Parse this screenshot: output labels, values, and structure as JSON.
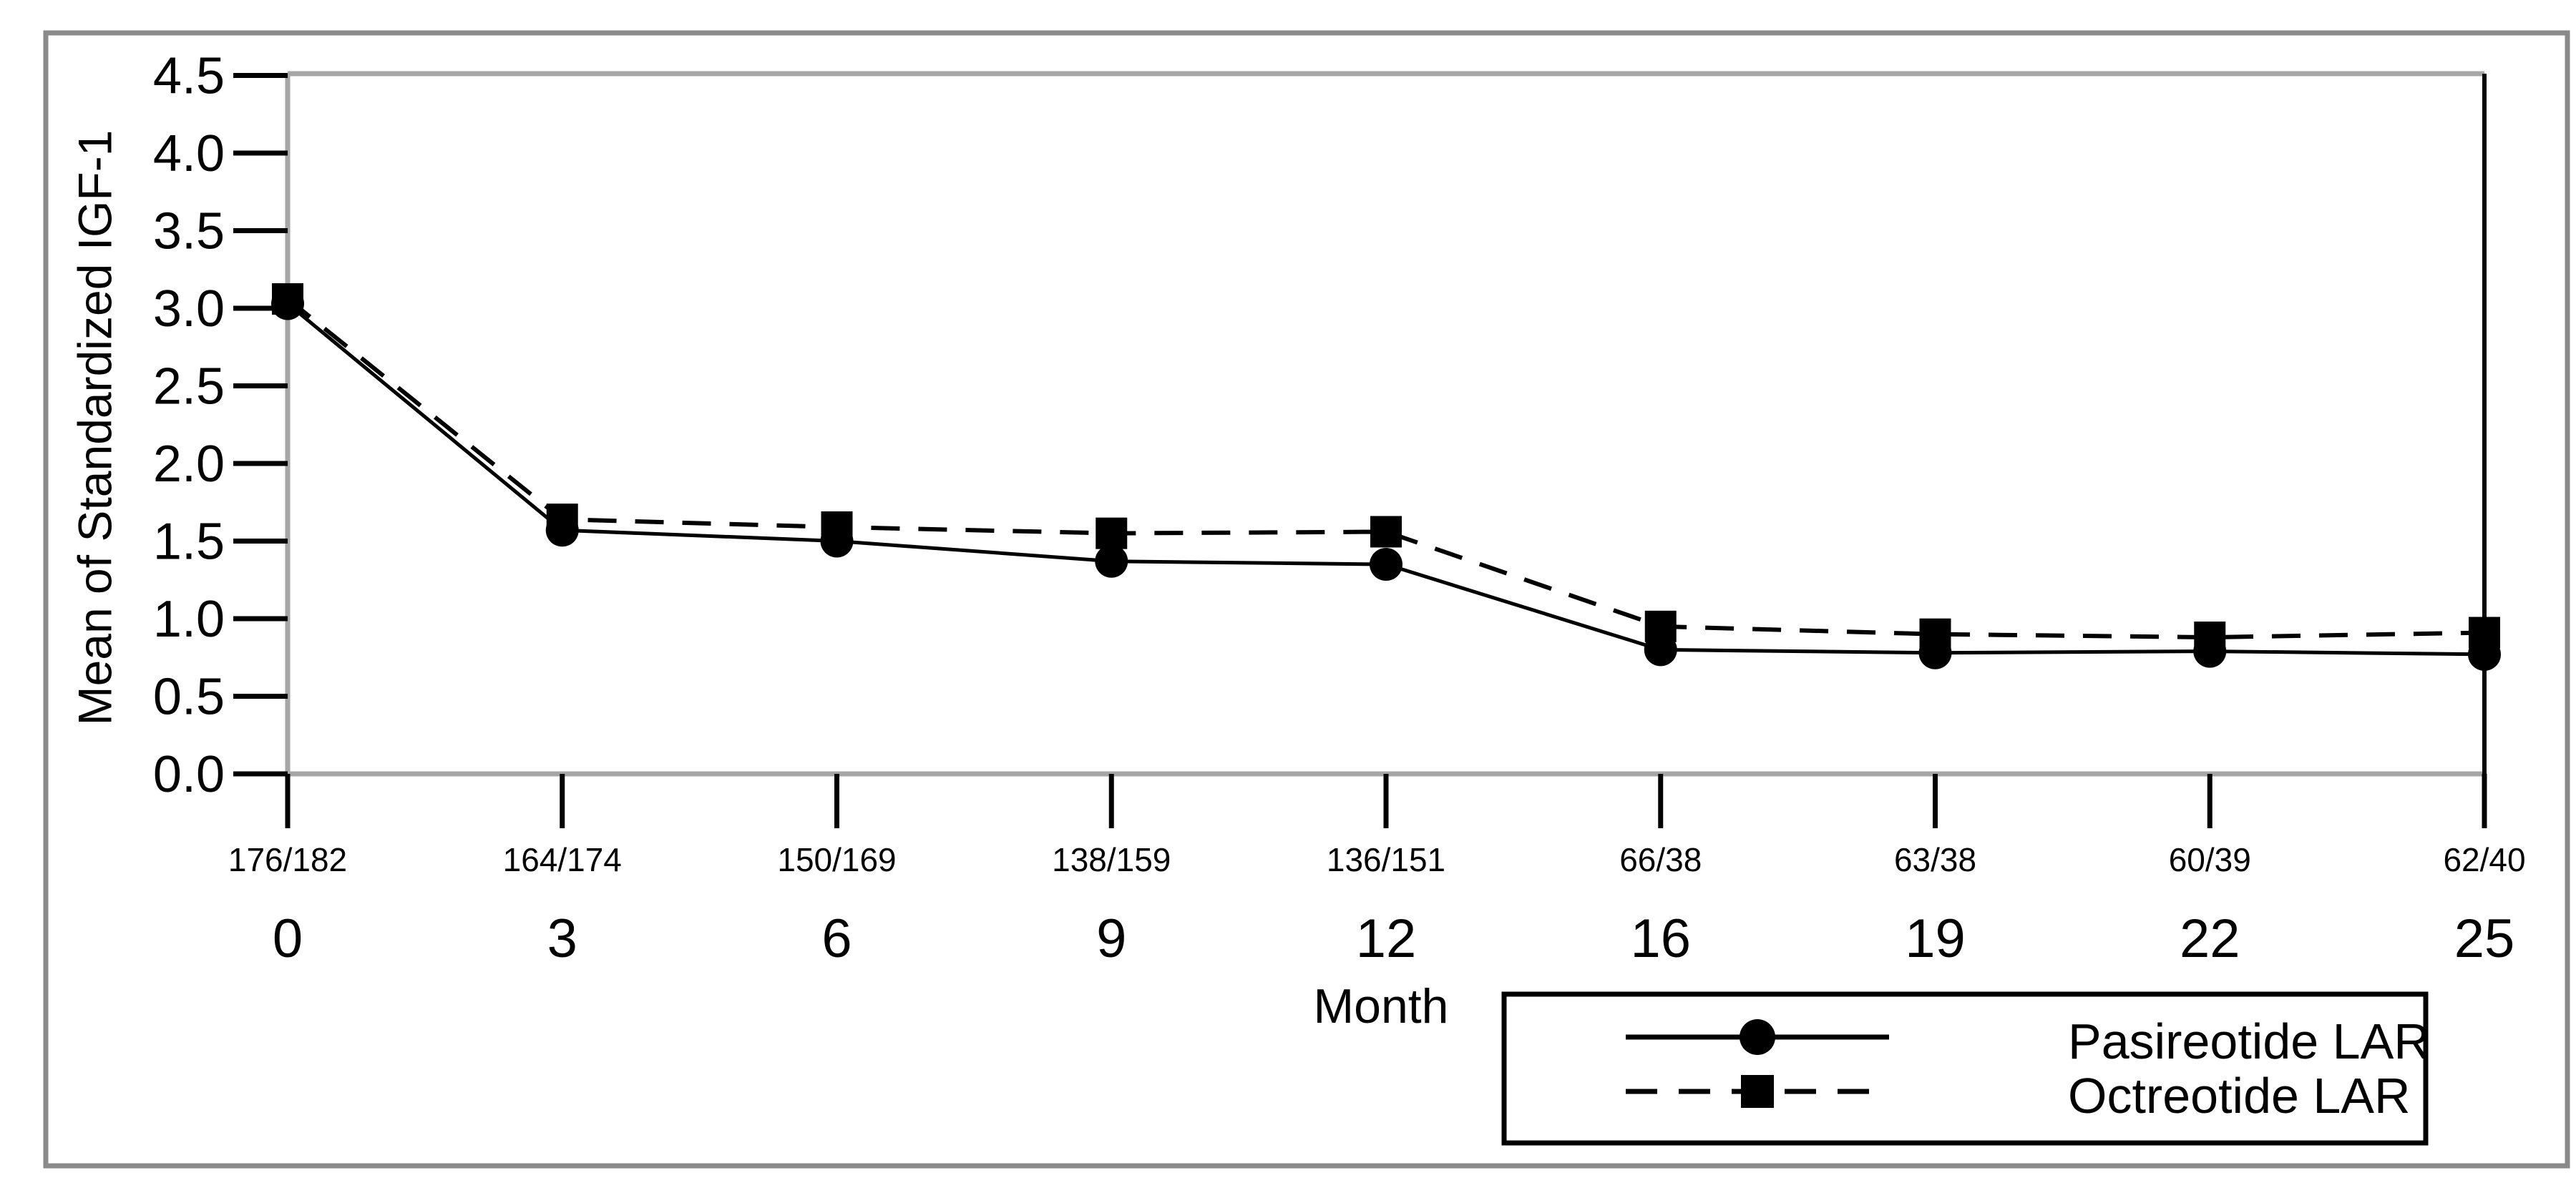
{
  "chart_data": {
    "type": "line",
    "title": "",
    "xlabel": "Month",
    "ylabel": "Mean of Standardized IGF-1",
    "x_tick_labels": [
      "0",
      "3",
      "6",
      "9",
      "12",
      "16",
      "19",
      "22",
      "25"
    ],
    "x_sample_size_labels": [
      "176/182",
      "164/174",
      "150/169",
      "138/159",
      "136/151",
      "66/38",
      "63/38",
      "60/39",
      "62/40"
    ],
    "y_tick_labels": [
      "0.0",
      "0.5",
      "1.0",
      "1.5",
      "2.0",
      "2.5",
      "3.0",
      "3.5",
      "4.0",
      "4.5"
    ],
    "ylim": [
      0,
      4.5
    ],
    "grid": false,
    "legend_position": "bottom-right",
    "series": [
      {
        "name": "Pasireotide LAR",
        "marker": "circle",
        "line_style": "solid",
        "values": [
          3.03,
          1.57,
          1.5,
          1.37,
          1.35,
          0.8,
          0.78,
          0.79,
          0.77
        ]
      },
      {
        "name": "Octreotide LAR",
        "marker": "square",
        "line_style": "dashed",
        "values": [
          3.06,
          1.64,
          1.59,
          1.55,
          1.56,
          0.95,
          0.9,
          0.88,
          0.91
        ]
      }
    ]
  },
  "colors": {
    "series_color": "#000000",
    "plot_frame_gray": "#a6a6a6",
    "plot_frame_right_black": "#000000",
    "tick_color": "#000000",
    "outer_border_gray": "#8a8a8a",
    "background": "#ffffff"
  }
}
